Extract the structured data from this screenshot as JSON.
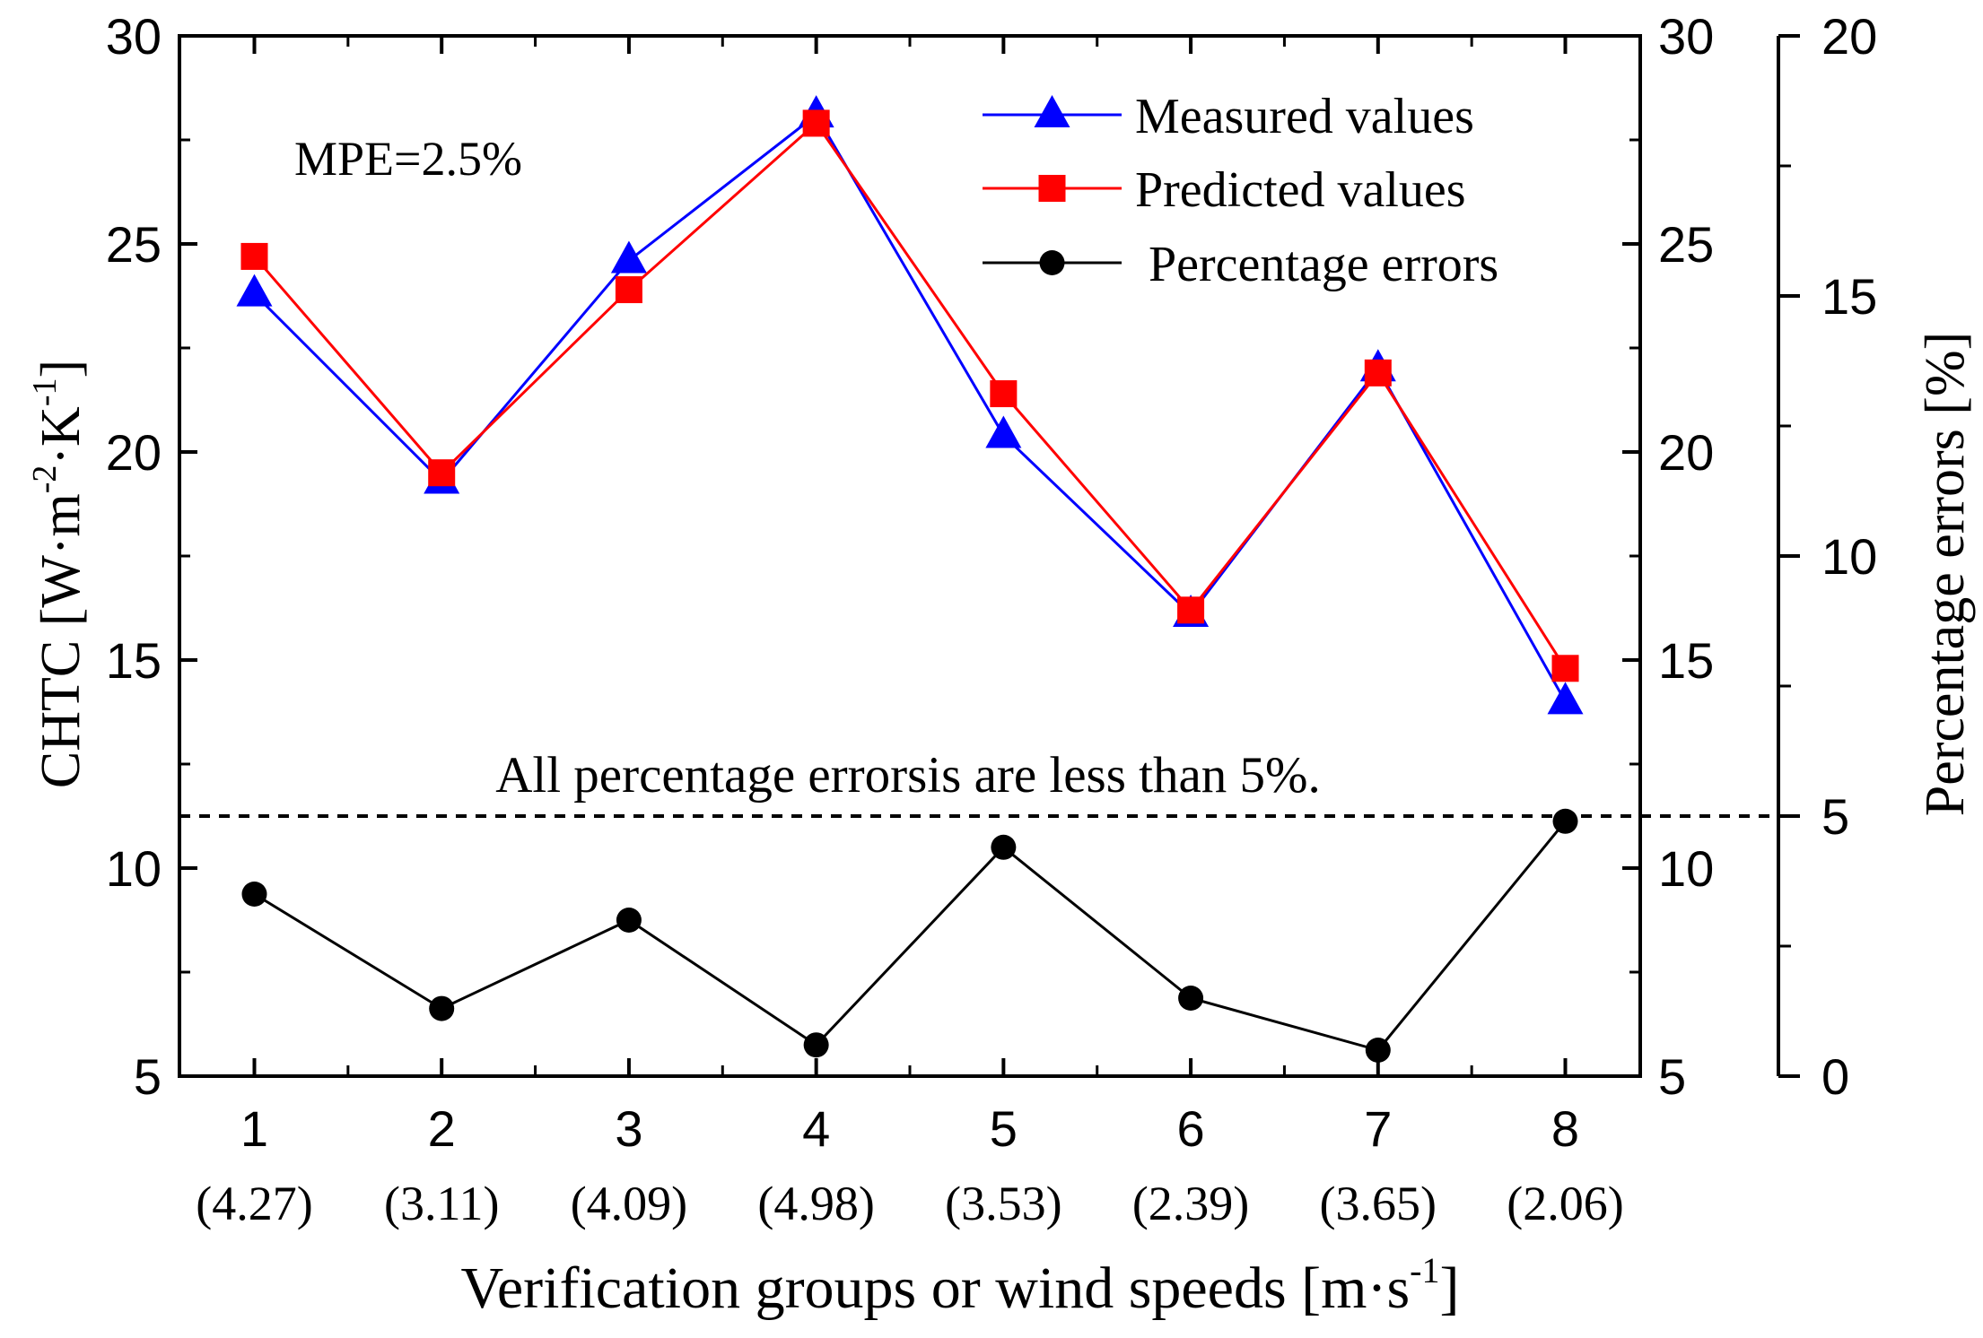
{
  "chart_data": {
    "type": "line",
    "x": [
      1,
      2,
      3,
      4,
      5,
      6,
      7,
      8
    ],
    "x_tick_labels": [
      "1",
      "2",
      "3",
      "4",
      "5",
      "6",
      "7",
      "8"
    ],
    "x_sub_labels": [
      "(4.27)",
      "(3.11)",
      "(4.09)",
      "(4.98)",
      "(3.53)",
      "(2.39)",
      "(3.65)",
      "(2.06)"
    ],
    "xlabel": "Verification groups or wind speeds [m·s-1]",
    "xlabel_parts": {
      "main": "Verification groups or wind speeds [m·s",
      "sup": "-1",
      "end": "]"
    },
    "ylabel": "CHTC [W·m-2·K-1]",
    "ylabel_parts": {
      "a": "CHTC [W·m",
      "sup1": "-2",
      "b": "·K",
      "sup2": "-1",
      "c": "]"
    },
    "y2label": "Percentage errors [%]",
    "xlim": [
      0.6,
      8.4
    ],
    "ylim": [
      5,
      30
    ],
    "y2lim": [
      0,
      20
    ],
    "y_ticks": [
      5,
      10,
      15,
      20,
      25,
      30
    ],
    "y_tick_labels": [
      "5",
      "10",
      "15",
      "20",
      "25",
      "30"
    ],
    "y_mid_tick_labels": [
      "5",
      "10",
      "15",
      "20",
      "25",
      "30"
    ],
    "y2_ticks": [
      0,
      5,
      10,
      15,
      20
    ],
    "y2_tick_labels": [
      "0",
      "5",
      "10",
      "15",
      "20"
    ],
    "series": [
      {
        "name": "Measured values",
        "axis": "left",
        "marker": "triangle",
        "color": "#0000ff",
        "values": [
          23.8,
          19.3,
          24.6,
          28.1,
          20.4,
          16.1,
          22.0,
          14.0
        ]
      },
      {
        "name": "Predicted values",
        "axis": "left",
        "marker": "square",
        "color": "#ff0000",
        "values": [
          24.7,
          19.5,
          23.9,
          27.9,
          21.4,
          16.2,
          21.9,
          14.8
        ]
      },
      {
        "name": "Percentage errors",
        "axis": "right",
        "marker": "circle",
        "color": "#000000",
        "values": [
          3.5,
          1.3,
          3.0,
          0.6,
          4.4,
          1.5,
          0.5,
          4.9
        ]
      }
    ],
    "threshold": {
      "axis": "right",
      "value": 5,
      "style": "dashed",
      "label": "All percentage errorsis are less than 5%."
    },
    "annotation": "MPE=2.5%",
    "legend": "top-right",
    "grid": false
  }
}
